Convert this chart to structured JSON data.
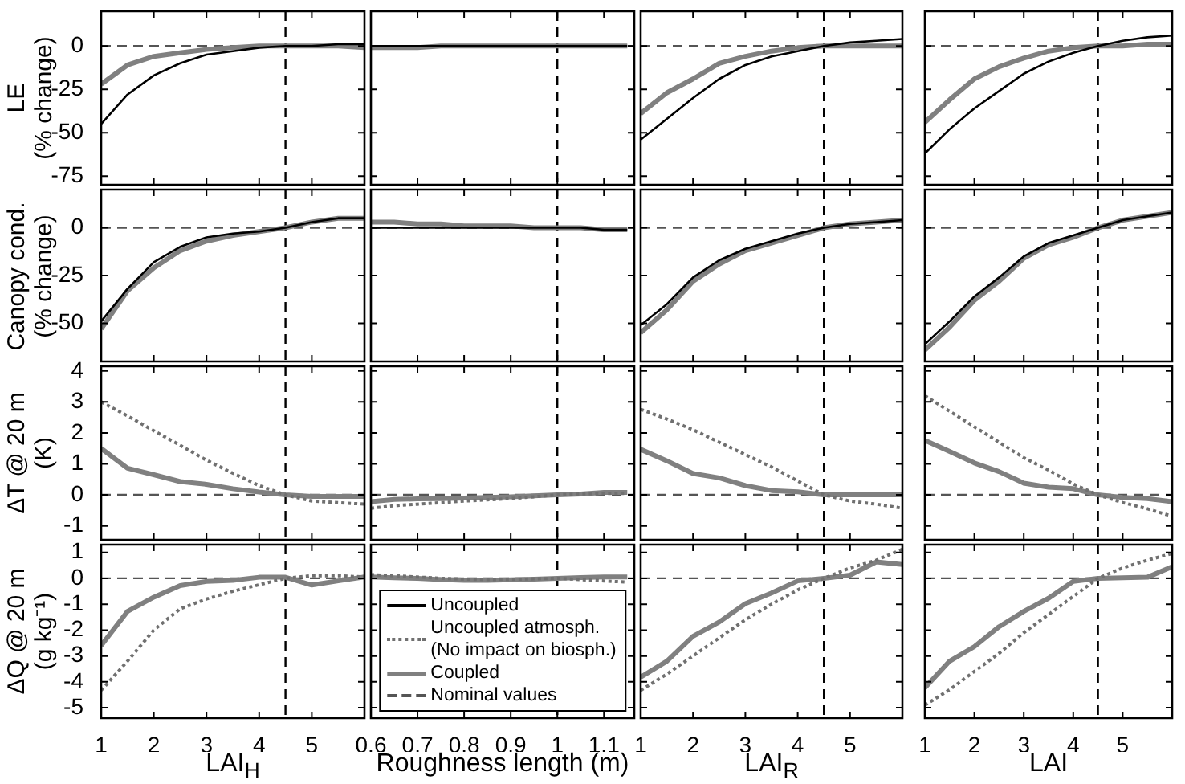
{
  "chart_data": [
    {
      "type": "line",
      "ylabel": "LE\n(% change)",
      "x": [
        1,
        1.5,
        2,
        2.5,
        3,
        3.5,
        4,
        4.5,
        5,
        5.5,
        6
      ],
      "xlim": [
        1,
        6
      ],
      "xticks": [
        1,
        2,
        3,
        4,
        5
      ],
      "ylim": [
        -80,
        20
      ],
      "yticks": [
        -75,
        -50,
        -25,
        0
      ],
      "tick_labels": "y",
      "ref_lines": [
        {
          "axis": "y",
          "value": 0,
          "color": "#555555",
          "line_style": "dashed"
        },
        {
          "axis": "x",
          "value": 4.5,
          "color": "#000000",
          "line_style": "dashed"
        }
      ],
      "series": [
        {
          "color": "#000000",
          "values": [
            -45,
            -28,
            -17,
            -10,
            -5,
            -3,
            -1,
            0,
            0,
            1,
            1
          ]
        },
        {
          "color": "#808080",
          "values": [
            -22,
            -11,
            -6,
            -4,
            -2,
            -1,
            0,
            0,
            0,
            0,
            -1
          ]
        }
      ]
    },
    {
      "type": "line",
      "x": [
        0.6,
        0.65,
        0.7,
        0.75,
        0.8,
        0.85,
        0.9,
        0.95,
        1,
        1.05,
        1.1,
        1.15
      ],
      "xlim": [
        0.6,
        1.165
      ],
      "xticks": [
        0.6,
        0.7,
        0.8,
        0.9,
        1,
        1.1
      ],
      "ylim": [
        -80,
        20
      ],
      "yticks": [
        -75,
        -50,
        -25,
        0
      ],
      "tick_labels": false,
      "ref_lines": [
        {
          "axis": "y",
          "value": 0,
          "color": "#555555",
          "line_style": "dashed"
        },
        {
          "axis": "x",
          "value": 1,
          "color": "#000000",
          "line_style": "dashed"
        }
      ],
      "series": [
        {
          "color": "#000000",
          "values": [
            0,
            0,
            0,
            0,
            0,
            0,
            0,
            0,
            0,
            0,
            0,
            0
          ]
        },
        {
          "color": "#808080",
          "values": [
            -1,
            -1,
            -1,
            0,
            0,
            0,
            0,
            0,
            0,
            0,
            0,
            0
          ]
        }
      ]
    },
    {
      "type": "line",
      "x": [
        1,
        1.5,
        2,
        2.5,
        3,
        3.5,
        4,
        4.5,
        5,
        5.5,
        6
      ],
      "xlim": [
        1,
        6
      ],
      "xticks": [
        1,
        2,
        3,
        4,
        5
      ],
      "ylim": [
        -80,
        20
      ],
      "yticks": [
        -75,
        -50,
        -25,
        0
      ],
      "tick_labels": false,
      "ref_lines": [
        {
          "axis": "y",
          "value": 0,
          "color": "#555555",
          "line_style": "dashed"
        },
        {
          "axis": "x",
          "value": 4.5,
          "color": "#000000",
          "line_style": "dashed"
        }
      ],
      "series": [
        {
          "color": "#000000",
          "values": [
            -54,
            -42,
            -30,
            -19,
            -11,
            -6,
            -3,
            0,
            2,
            3,
            4
          ]
        },
        {
          "color": "#808080",
          "values": [
            -39,
            -27,
            -19,
            -10,
            -6,
            -3,
            -1,
            0,
            0,
            0,
            0
          ]
        }
      ]
    },
    {
      "type": "line",
      "x": [
        1,
        1.5,
        2,
        2.5,
        3,
        3.5,
        4,
        4.5,
        5,
        5.5,
        6
      ],
      "xlim": [
        1,
        6
      ],
      "xticks": [
        1,
        2,
        3,
        4,
        5
      ],
      "ylim": [
        -80,
        20
      ],
      "yticks": [
        -75,
        -50,
        -25,
        0
      ],
      "tick_labels": false,
      "ref_lines": [
        {
          "axis": "y",
          "value": 0,
          "color": "#555555",
          "line_style": "dashed"
        },
        {
          "axis": "x",
          "value": 4.5,
          "color": "#000000",
          "line_style": "dashed"
        }
      ],
      "series": [
        {
          "color": "#000000",
          "values": [
            -62,
            -48,
            -36,
            -26,
            -16,
            -9,
            -4,
            0,
            3,
            5,
            6
          ]
        },
        {
          "color": "#808080",
          "values": [
            -44,
            -31,
            -19,
            -12,
            -7,
            -3,
            -1,
            0,
            0,
            1,
            1
          ]
        }
      ]
    },
    {
      "type": "line",
      "ylabel": "Canopy cond.\n(% change)",
      "x": [
        1,
        1.5,
        2,
        2.5,
        3,
        3.5,
        4,
        4.5,
        5,
        5.5,
        6
      ],
      "xlim": [
        1,
        6
      ],
      "xticks": [
        1,
        2,
        3,
        4,
        5
      ],
      "ylim": [
        -70,
        20
      ],
      "yticks": [
        -50,
        -25,
        0
      ],
      "tick_labels": "y",
      "ref_lines": [
        {
          "axis": "y",
          "value": 0,
          "color": "#555555",
          "line_style": "dashed"
        },
        {
          "axis": "x",
          "value": 4.5,
          "color": "#000000",
          "line_style": "dashed"
        }
      ],
      "series": [
        {
          "color": "#000000",
          "values": [
            -49,
            -32,
            -18,
            -10,
            -5,
            -3,
            -2,
            0,
            3,
            5,
            5
          ]
        },
        {
          "color": "#808080",
          "values": [
            -53,
            -33,
            -21,
            -12,
            -7,
            -4,
            -2,
            0,
            3,
            5,
            5
          ]
        }
      ]
    },
    {
      "type": "line",
      "x": [
        0.6,
        0.65,
        0.7,
        0.75,
        0.8,
        0.85,
        0.9,
        0.95,
        1,
        1.05,
        1.1,
        1.15
      ],
      "xlim": [
        0.6,
        1.165
      ],
      "xticks": [
        0.6,
        0.7,
        0.8,
        0.9,
        1,
        1.1
      ],
      "ylim": [
        -70,
        20
      ],
      "yticks": [
        -50,
        -25,
        0
      ],
      "tick_labels": false,
      "ref_lines": [
        {
          "axis": "y",
          "value": 0,
          "color": "#555555",
          "line_style": "dashed"
        },
        {
          "axis": "x",
          "value": 1,
          "color": "#000000",
          "line_style": "dashed"
        }
      ],
      "series": [
        {
          "color": "#000000",
          "values": [
            0,
            0,
            0,
            0,
            0,
            0,
            0,
            0,
            0,
            0,
            -1,
            -1
          ]
        },
        {
          "color": "#808080",
          "values": [
            3,
            3,
            2,
            2,
            1,
            1,
            1,
            0,
            0,
            0,
            -1,
            -1
          ]
        }
      ]
    },
    {
      "type": "line",
      "x": [
        1,
        1.5,
        2,
        2.5,
        3,
        3.5,
        4,
        4.5,
        5,
        5.5,
        6
      ],
      "xlim": [
        1,
        6
      ],
      "xticks": [
        1,
        2,
        3,
        4,
        5
      ],
      "ylim": [
        -70,
        20
      ],
      "yticks": [
        -50,
        -25,
        0
      ],
      "tick_labels": false,
      "ref_lines": [
        {
          "axis": "y",
          "value": 0,
          "color": "#555555",
          "line_style": "dashed"
        },
        {
          "axis": "x",
          "value": 4.5,
          "color": "#000000",
          "line_style": "dashed"
        }
      ],
      "series": [
        {
          "color": "#000000",
          "values": [
            -51,
            -40,
            -26,
            -17,
            -11,
            -7,
            -3,
            0,
            2,
            3,
            4
          ]
        },
        {
          "color": "#808080",
          "values": [
            -55,
            -43,
            -28,
            -19,
            -12,
            -8,
            -4,
            0,
            2,
            3,
            4
          ]
        }
      ]
    },
    {
      "type": "line",
      "x": [
        1,
        1.5,
        2,
        2.5,
        3,
        3.5,
        4,
        4.5,
        5,
        5.5,
        6
      ],
      "xlim": [
        1,
        6
      ],
      "xticks": [
        1,
        2,
        3,
        4,
        5
      ],
      "ylim": [
        -70,
        20
      ],
      "yticks": [
        -50,
        -25,
        0
      ],
      "tick_labels": false,
      "ref_lines": [
        {
          "axis": "y",
          "value": 0,
          "color": "#555555",
          "line_style": "dashed"
        },
        {
          "axis": "x",
          "value": 4.5,
          "color": "#000000",
          "line_style": "dashed"
        }
      ],
      "series": [
        {
          "color": "#000000",
          "values": [
            -61,
            -49,
            -36,
            -26,
            -15,
            -8,
            -4,
            0,
            4,
            6,
            8
          ]
        },
        {
          "color": "#808080",
          "values": [
            -64,
            -52,
            -38,
            -28,
            -16,
            -9,
            -5,
            0,
            4,
            6,
            8
          ]
        }
      ]
    },
    {
      "type": "line",
      "ylabel": "ΔT @ 20 m\n(K)",
      "x": [
        1,
        1.5,
        2,
        2.5,
        3,
        3.5,
        4,
        4.5,
        5,
        5.5,
        6
      ],
      "xlim": [
        1,
        6
      ],
      "xticks": [
        1,
        2,
        3,
        4,
        5
      ],
      "ylim": [
        -1.45,
        4.15
      ],
      "yticks": [
        -1,
        0,
        1,
        2,
        3,
        4
      ],
      "tick_labels": "y",
      "ref_lines": [
        {
          "axis": "y",
          "value": 0,
          "color": "#555555",
          "line_style": "dashed"
        },
        {
          "axis": "x",
          "value": 4.5,
          "color": "#000000",
          "line_style": "dashed"
        }
      ],
      "series": [
        {
          "color": "#707070",
          "line_style": "dotted",
          "values": [
            3,
            2.55,
            2.07,
            1.6,
            1.12,
            0.7,
            0.3,
            0,
            -0.2,
            -0.25,
            -0.3
          ]
        },
        {
          "color": "#808080",
          "values": [
            1.5,
            0.86,
            0.65,
            0.43,
            0.34,
            0.2,
            0.09,
            0,
            -0.05,
            -0.05,
            -0.05
          ]
        }
      ]
    },
    {
      "type": "line",
      "x": [
        0.6,
        0.65,
        0.7,
        0.75,
        0.8,
        0.85,
        0.9,
        0.95,
        1,
        1.05,
        1.1,
        1.15
      ],
      "xlim": [
        0.6,
        1.165
      ],
      "xticks": [
        0.6,
        0.7,
        0.8,
        0.9,
        1,
        1.1
      ],
      "ylim": [
        -1.45,
        4.15
      ],
      "yticks": [
        -1,
        0,
        1,
        2,
        3,
        4
      ],
      "tick_labels": false,
      "ref_lines": [
        {
          "axis": "y",
          "value": 0,
          "color": "#555555",
          "line_style": "dashed"
        },
        {
          "axis": "x",
          "value": 1,
          "color": "#000000",
          "line_style": "dashed"
        }
      ],
      "series": [
        {
          "color": "#707070",
          "line_style": "dotted",
          "values": [
            -0.43,
            -0.35,
            -0.3,
            -0.25,
            -0.2,
            -0.16,
            -0.12,
            -0.06,
            0,
            0.03,
            0.05,
            0.05
          ]
        },
        {
          "color": "#808080",
          "values": [
            -0.22,
            -0.15,
            -0.13,
            -0.12,
            -0.1,
            -0.08,
            -0.06,
            -0.03,
            0,
            0.03,
            0.08,
            0.08
          ]
        }
      ]
    },
    {
      "type": "line",
      "x": [
        1,
        1.5,
        2,
        2.5,
        3,
        3.5,
        4,
        4.5,
        5,
        5.5,
        6
      ],
      "xlim": [
        1,
        6
      ],
      "xticks": [
        1,
        2,
        3,
        4,
        5
      ],
      "ylim": [
        -1.45,
        4.15
      ],
      "yticks": [
        -1,
        0,
        1,
        2,
        3,
        4
      ],
      "tick_labels": false,
      "ref_lines": [
        {
          "axis": "y",
          "value": 0,
          "color": "#555555",
          "line_style": "dashed"
        },
        {
          "axis": "x",
          "value": 4.5,
          "color": "#000000",
          "line_style": "dashed"
        }
      ],
      "series": [
        {
          "color": "#707070",
          "line_style": "dotted",
          "values": [
            2.76,
            2.45,
            2.1,
            1.7,
            1.3,
            0.9,
            0.45,
            0,
            -0.2,
            -0.3,
            -0.43
          ]
        },
        {
          "color": "#808080",
          "values": [
            1.47,
            1.1,
            0.69,
            0.55,
            0.3,
            0.14,
            0.1,
            0,
            0,
            0,
            0
          ]
        }
      ]
    },
    {
      "type": "line",
      "x": [
        1,
        1.5,
        2,
        2.5,
        3,
        3.5,
        4,
        4.5,
        5,
        5.5,
        6
      ],
      "xlim": [
        1,
        6
      ],
      "xticks": [
        1,
        2,
        3,
        4,
        5
      ],
      "ylim": [
        -1.45,
        4.15
      ],
      "yticks": [
        -1,
        0,
        1,
        2,
        3,
        4
      ],
      "tick_labels": false,
      "ref_lines": [
        {
          "axis": "y",
          "value": 0,
          "color": "#555555",
          "line_style": "dashed"
        },
        {
          "axis": "x",
          "value": 4.5,
          "color": "#000000",
          "line_style": "dashed"
        }
      ],
      "series": [
        {
          "color": "#707070",
          "line_style": "dotted",
          "values": [
            3.2,
            2.7,
            2.2,
            1.7,
            1.2,
            0.8,
            0.35,
            0,
            -0.25,
            -0.45,
            -0.69
          ]
        },
        {
          "color": "#808080",
          "values": [
            1.76,
            1.4,
            1.03,
            0.75,
            0.38,
            0.25,
            0.2,
            0,
            -0.08,
            -0.12,
            -0.22
          ]
        }
      ]
    },
    {
      "type": "line",
      "ylabel": "ΔQ @ 20 m\n(g kg⁻¹)",
      "xlabel": "LAI$_{H}$",
      "x": [
        1,
        1.5,
        2,
        2.5,
        3,
        3.5,
        4,
        4.5,
        5,
        5.5,
        6
      ],
      "xlim": [
        1,
        6
      ],
      "xticks": [
        1,
        2,
        3,
        4,
        5
      ],
      "ylim": [
        -5.4,
        1.3
      ],
      "yticks": [
        -5,
        -4,
        -3,
        -2,
        -1,
        0,
        1
      ],
      "ref_lines": [
        {
          "axis": "y",
          "value": 0,
          "color": "#555555",
          "line_style": "dashed"
        },
        {
          "axis": "x",
          "value": 4.5,
          "color": "#000000",
          "line_style": "dashed"
        }
      ],
      "series": [
        {
          "color": "#707070",
          "line_style": "dotted",
          "values": [
            -4.33,
            -3.2,
            -2,
            -1.18,
            -0.8,
            -0.5,
            -0.25,
            0,
            0.1,
            0.1,
            0.05
          ]
        },
        {
          "color": "#808080",
          "values": [
            -2.6,
            -1.28,
            -0.73,
            -0.28,
            -0.12,
            -0.08,
            0.04,
            0.04,
            -0.26,
            -0.1,
            0.05
          ]
        }
      ]
    },
    {
      "type": "line",
      "xlabel": "Roughness length (m)",
      "x": [
        0.6,
        0.65,
        0.7,
        0.75,
        0.8,
        0.85,
        0.9,
        0.95,
        1,
        1.05,
        1.1,
        1.15
      ],
      "xlim": [
        0.6,
        1.165
      ],
      "xticks": [
        0.6,
        0.7,
        0.8,
        0.9,
        1,
        1.1
      ],
      "ylim": [
        -5.4,
        1.3
      ],
      "yticks": [
        -5,
        -4,
        -3,
        -2,
        -1,
        0,
        1
      ],
      "tick_labels": "x",
      "legend": "bottom",
      "ref_lines": [
        {
          "axis": "y",
          "value": 0,
          "color": "#555555",
          "line_style": "dashed",
          "label": "Nominal values"
        },
        {
          "axis": "x",
          "value": 1,
          "color": "#000000",
          "line_style": "dashed"
        }
      ],
      "series": [
        {
          "name": "Uncoupled",
          "color": "#000000",
          "values": [
            null,
            null,
            null,
            null,
            null,
            null,
            null,
            null,
            null,
            null,
            null,
            null
          ]
        },
        {
          "name": "Uncoupled atmosph.\n(No impact on biosph.)",
          "color": "#707070",
          "line_style": "dotted",
          "values": [
            0.14,
            0.1,
            0.05,
            0,
            -0.03,
            -0.05,
            -0.04,
            -0.02,
            0,
            -0.05,
            -0.1,
            -0.15
          ]
        },
        {
          "name": "Coupled",
          "color": "#808080",
          "values": [
            0.05,
            0.02,
            0,
            -0.05,
            -0.08,
            -0.08,
            -0.06,
            -0.03,
            0,
            0.03,
            0.05,
            0.05
          ]
        }
      ]
    },
    {
      "type": "line",
      "xlabel": "LAI$_{R}$",
      "x": [
        1,
        1.5,
        2,
        2.5,
        3,
        3.5,
        4,
        4.5,
        5,
        5.5,
        6
      ],
      "xlim": [
        1,
        6
      ],
      "xticks": [
        1,
        2,
        3,
        4,
        5
      ],
      "ylim": [
        -5.4,
        1.3
      ],
      "yticks": [
        -5,
        -4,
        -3,
        -2,
        -1,
        0,
        1
      ],
      "tick_labels": "x",
      "ref_lines": [
        {
          "axis": "y",
          "value": 0,
          "color": "#555555",
          "line_style": "dashed"
        },
        {
          "axis": "x",
          "value": 4.5,
          "color": "#000000",
          "line_style": "dashed"
        }
      ],
      "series": [
        {
          "color": "#707070",
          "line_style": "dotted",
          "values": [
            -4.33,
            -3.7,
            -3,
            -2.3,
            -1.6,
            -1,
            -0.45,
            0,
            0.4,
            0.7,
            1.12
          ]
        },
        {
          "color": "#808080",
          "values": [
            -3.82,
            -3.2,
            -2.24,
            -1.69,
            -0.98,
            -0.57,
            -0.1,
            0,
            0.12,
            0.63,
            0.53
          ]
        }
      ]
    },
    {
      "type": "line",
      "xlabel": "LAI",
      "x": [
        1,
        1.5,
        2,
        2.5,
        3,
        3.5,
        4,
        4.5,
        5,
        5.5,
        6
      ],
      "xlim": [
        1,
        6
      ],
      "xticks": [
        1,
        2,
        3,
        4,
        5
      ],
      "ylim": [
        -5.4,
        1.3
      ],
      "yticks": [
        -5,
        -4,
        -3,
        -2,
        -1,
        0,
        1
      ],
      "tick_labels": "x",
      "ref_lines": [
        {
          "axis": "y",
          "value": 0,
          "color": "#555555",
          "line_style": "dashed"
        },
        {
          "axis": "x",
          "value": 4.5,
          "color": "#000000",
          "line_style": "dashed"
        }
      ],
      "series": [
        {
          "color": "#707070",
          "line_style": "dotted",
          "values": [
            -4.9,
            -4.3,
            -3.6,
            -2.9,
            -2.1,
            -1.4,
            -0.7,
            0,
            0.4,
            0.7,
            0.96
          ]
        },
        {
          "color": "#808080",
          "values": [
            -4.23,
            -3.2,
            -2.64,
            -1.87,
            -1.28,
            -0.77,
            -0.12,
            0,
            0.02,
            0.04,
            0.45
          ]
        }
      ]
    }
  ]
}
